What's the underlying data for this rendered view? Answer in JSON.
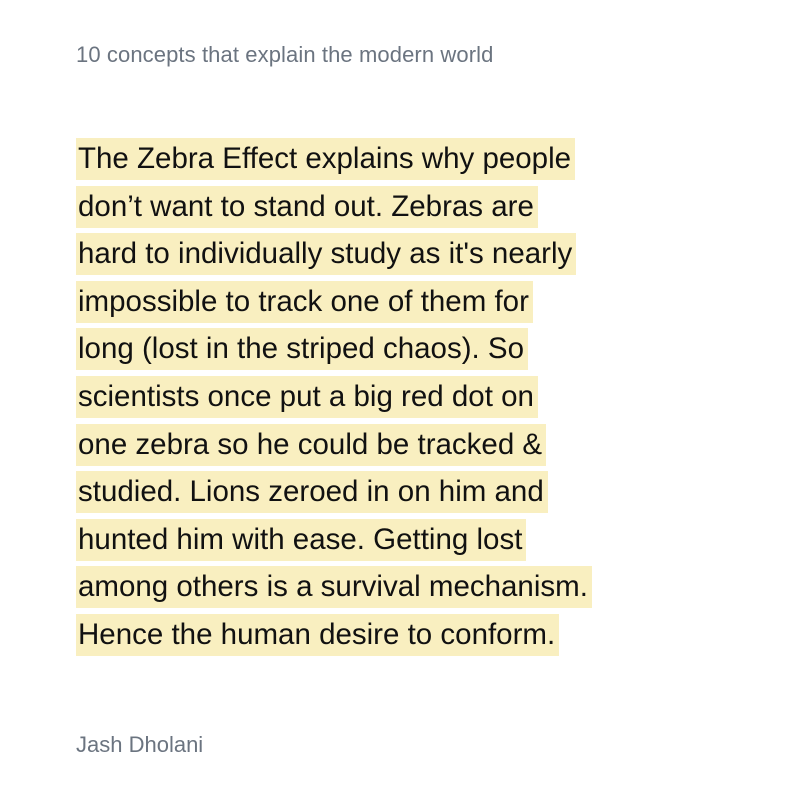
{
  "header": {
    "title": "10 concepts that explain the modern world"
  },
  "quote": {
    "lines": [
      "The Zebra Effect explains why people",
      "don’t want to stand out. Zebras are",
      "hard to individually study as it's nearly",
      "impossible to track one of them for",
      "long (lost in the striped chaos). So",
      "scientists once put a big red dot on",
      "one zebra so he could be tracked &",
      "studied. Lions zeroed in on him and",
      "hunted him with ease. Getting lost",
      "among others is a survival mechanism.",
      "Hence the human desire to conform."
    ]
  },
  "author": {
    "name": "Jash Dholani"
  },
  "colors": {
    "highlight": "#f9efc0",
    "muted_text": "#6b7480",
    "text": "#111111"
  }
}
